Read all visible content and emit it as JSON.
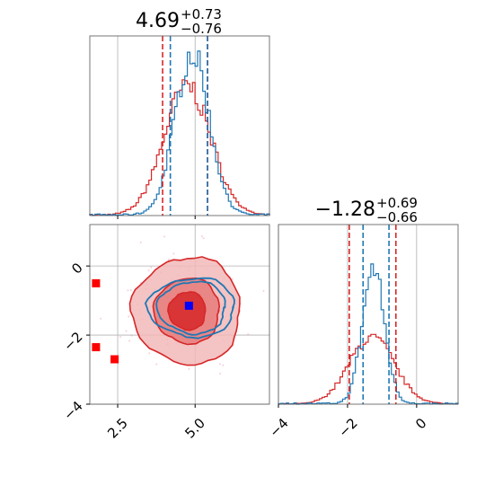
{
  "chart_data": {
    "type": "corner",
    "parameters": [
      {
        "name": "",
        "title_value": "4.69",
        "title_plus": "+0.73",
        "title_minus": "−0.76",
        "range": [
          1.6,
          7.4
        ]
      },
      {
        "name": "",
        "title_value": "−1.28",
        "title_plus": "+0.69",
        "title_minus": "−0.66",
        "range": [
          -4.0,
          1.2
        ]
      }
    ],
    "x_ticks": [
      {
        "value": 2.5,
        "label": "2.5"
      },
      {
        "value": 5.0,
        "label": "5.0"
      }
    ],
    "y_ticks": [
      {
        "value": 0,
        "label": "0"
      },
      {
        "value": -2,
        "label": "−2"
      },
      {
        "value": -4,
        "label": "−4"
      }
    ],
    "x2_ticks": [
      {
        "value": -4,
        "label": "−4"
      },
      {
        "value": -2,
        "label": "−2"
      },
      {
        "value": 0,
        "label": "0"
      }
    ],
    "grid": true,
    "colors": {
      "blue": "#1f77b4",
      "red": "#d62728",
      "marker_blue": "#0000ff",
      "marker_red": "#ff0000"
    },
    "series": [
      {
        "color": "blue",
        "hist1": {
          "center": 4.9,
          "sigma": 0.55
        },
        "hist2": {
          "center": -1.25,
          "sigma": 0.32
        },
        "quantile_lines_1": [
          4.2,
          5.4
        ],
        "quantile_lines_2": [
          -1.55,
          -0.8
        ],
        "contour_centers": [
          4.9,
          -1.2
        ],
        "contour_radii": [
          [
            1.1,
            0.75
          ],
          [
            1.4,
            0.85
          ]
        ]
      },
      {
        "color": "red",
        "hist1": {
          "center": 4.75,
          "sigma": 0.75
        },
        "hist2": {
          "center": -1.3,
          "sigma": 0.65
        },
        "quantile_lines_1": [
          3.95,
          5.4
        ],
        "quantile_lines_2": [
          -1.95,
          -0.6
        ],
        "contour_centers": [
          4.75,
          -1.3
        ],
        "contour_radii": [
          [
            0.6,
            0.55
          ],
          [
            1.05,
            0.95
          ],
          [
            1.75,
            1.55
          ]
        ]
      }
    ],
    "markers": [
      {
        "color": "marker_blue",
        "x": 4.8,
        "y": -1.15
      },
      {
        "color": "marker_red",
        "x": 1.8,
        "y": -0.5
      },
      {
        "color": "marker_red",
        "x": 1.8,
        "y": -2.35
      },
      {
        "color": "marker_red",
        "x": 2.4,
        "y": -2.7
      }
    ]
  }
}
